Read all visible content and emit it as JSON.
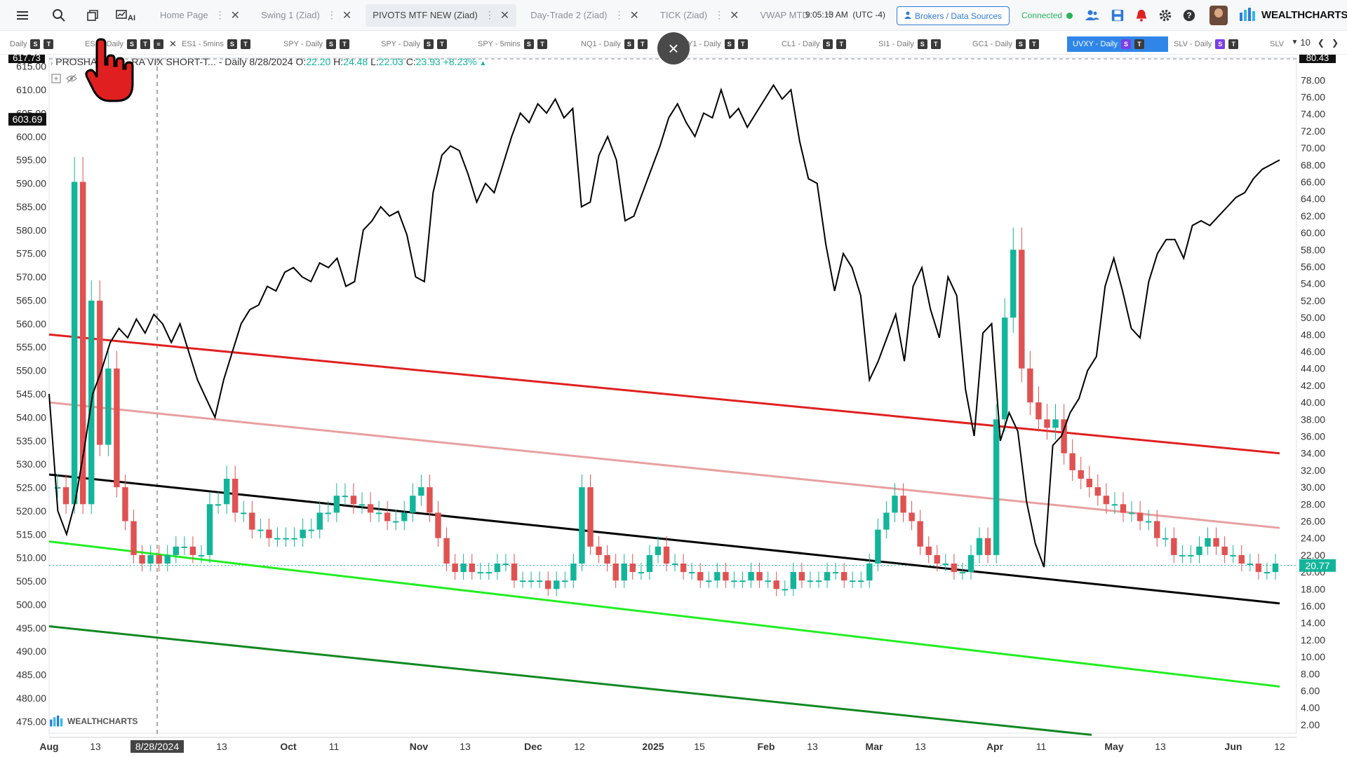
{
  "topbar": {
    "menu_icon": "hamburger-icon",
    "search_icon": "search-icon",
    "windows_icon": "windows-icon",
    "ai_label": "AI",
    "tabs": [
      {
        "label": "Home Page",
        "active": false
      },
      {
        "label": "Swing 1 (Ziad)",
        "active": false
      },
      {
        "label": "PIVOTS MTF NEW (Ziad)",
        "active": true
      },
      {
        "label": "Day-Trade 2 (Ziad)",
        "active": false
      },
      {
        "label": "TICK (Ziad)",
        "active": false
      },
      {
        "label": "VWAP MTD",
        "active": false
      }
    ],
    "add_tab": "+",
    "clock": "9:05:13 AM",
    "timezone": "(UTC -4)",
    "brokers_label": "Brokers / Data Sources",
    "status_label": "Connected",
    "status_color": "#27b35a",
    "brand": "WEALTHCHARTS"
  },
  "chart_tabs": [
    {
      "label": "Daily",
      "s": "S",
      "t": "T",
      "active": false
    },
    {
      "label": "ES1 - Daily",
      "s": "S",
      "t": "T",
      "active": false,
      "closable": true
    },
    {
      "label": "ES1 - 5mins",
      "s": "S",
      "t": "T",
      "active": false
    },
    {
      "label": "SPY - Daily",
      "s": "S",
      "t": "T",
      "active": false
    },
    {
      "label": "SPY - Daily",
      "s": "S",
      "t": "T",
      "active": false
    },
    {
      "label": "SPY - 5mins",
      "s": "S",
      "t": "T",
      "active": false
    },
    {
      "label": "NQ1 - Daily",
      "s": "S",
      "t": "T",
      "active": false
    },
    {
      "label": "Y1 - Daily",
      "s": "S",
      "t": "T",
      "active": false
    },
    {
      "label": "CL1 - Daily",
      "s": "S",
      "t": "T",
      "active": false
    },
    {
      "label": "SI1 - Daily",
      "s": "S",
      "t": "T",
      "active": false
    },
    {
      "label": "GC1 - Daily",
      "s": "S",
      "t": "T",
      "active": false
    },
    {
      "label": "UVXY - Daily",
      "s": "S",
      "t": "T",
      "active": true
    },
    {
      "label": "SLV - Daily",
      "s": "S",
      "t": "T",
      "active": false
    },
    {
      "label": "SLV",
      "s": "",
      "t": "",
      "active": false
    }
  ],
  "tabs_more": "10",
  "legend": {
    "name": "PROSHA",
    "name_tail": "RA VIX SHORT-T...",
    "interval": "- Daily",
    "date": "8/28/2024",
    "o_label": "O:",
    "o": "22.20",
    "h_label": "H:",
    "h": "24.48",
    "l_label": "L:",
    "l": "22.03",
    "c_label": "C:",
    "c": "23.93",
    "change": "+8.23%"
  },
  "chart_data": {
    "type": "candlestick+line",
    "symbol": "UVXY - Daily",
    "left_axis": {
      "ticks": [
        "615.00",
        "610.00",
        "605.00",
        "600.00",
        "595.00",
        "590.00",
        "585.00",
        "580.00",
        "575.00",
        "570.00",
        "565.00",
        "560.00",
        "555.00",
        "550.00",
        "545.00",
        "540.00",
        "535.00",
        "530.00",
        "525.00",
        "520.00",
        "515.00",
        "510.00",
        "505.00",
        "500.00",
        "495.00",
        "490.00",
        "485.00",
        "480.00",
        "475.00"
      ],
      "ylim": [
        472.5,
        617.5
      ],
      "top_label": "617.73",
      "current_label": "603.69"
    },
    "right_axis": {
      "ticks": [
        "78.00",
        "76.00",
        "74.00",
        "72.00",
        "70.00",
        "68.00",
        "66.00",
        "64.00",
        "62.00",
        "60.00",
        "58.00",
        "56.00",
        "54.00",
        "52.00",
        "50.00",
        "48.00",
        "46.00",
        "44.00",
        "42.00",
        "40.00",
        "38.00",
        "36.00",
        "34.00",
        "32.00",
        "30.00",
        "28.00",
        "26.00",
        "24.00",
        "22.00",
        "20.00",
        "18.00",
        "16.00",
        "14.00",
        "12.00",
        "10.00",
        "8.00",
        "6.00",
        "4.00",
        "2.00"
      ],
      "ylim": [
        1.0,
        81.0
      ],
      "top_label": "80.43",
      "current_label": "20.77"
    },
    "x_axis_labels": [
      "Aug",
      "13",
      "8/28/2024",
      "13",
      "Oct",
      "11",
      "Nov",
      "13",
      "Dec",
      "12",
      "2025",
      "15",
      "Feb",
      "13",
      "Mar",
      "13",
      "Apr",
      "11",
      "May",
      "13",
      "Jun",
      "12"
    ],
    "crosshair_date": "8/28/2024",
    "line_series": {
      "name": "",
      "axis": "left",
      "values": [
        545,
        520,
        515,
        522,
        533,
        545,
        550,
        556,
        559,
        557,
        561,
        558,
        562,
        560,
        556,
        560,
        554,
        548,
        544,
        540,
        548,
        554,
        560,
        563,
        564,
        568,
        567,
        571,
        572,
        570,
        569,
        573,
        572,
        574,
        568,
        569,
        580,
        582,
        585,
        583,
        584,
        579,
        570,
        569,
        588,
        596,
        598,
        597,
        592,
        586,
        590,
        588,
        594,
        600,
        605,
        603,
        607,
        605,
        608,
        604,
        606,
        585,
        586,
        596,
        600,
        595,
        582,
        583,
        588,
        593,
        598,
        604,
        607,
        603,
        600,
        605,
        604,
        610,
        604,
        606,
        602,
        605,
        608,
        611,
        608,
        610,
        599,
        591,
        590,
        577,
        567,
        575,
        572,
        566,
        548,
        552,
        557,
        562,
        552,
        568,
        572,
        563,
        557,
        570,
        566,
        546,
        536,
        558,
        560,
        535,
        541,
        537,
        522,
        513,
        508,
        534,
        536,
        541,
        544,
        550,
        553,
        568,
        574,
        567,
        559,
        557,
        569,
        575,
        578,
        578,
        574,
        581,
        582,
        581,
        583,
        585,
        587,
        588,
        591,
        593,
        594,
        595
      ]
    },
    "candles": {
      "axis": "right",
      "values": [
        30,
        28,
        66,
        28,
        52,
        35,
        44,
        30,
        26,
        22,
        21,
        22,
        21,
        22,
        23,
        23,
        22,
        22,
        28,
        28,
        31,
        27,
        27,
        25,
        25,
        24,
        24,
        24,
        24,
        25,
        25,
        27,
        27,
        29,
        29,
        28,
        28,
        27,
        27,
        26,
        26,
        27,
        29,
        30,
        27,
        24,
        21,
        20,
        21,
        20,
        20,
        20,
        21,
        21,
        19,
        19,
        19,
        19,
        18,
        19,
        19,
        21,
        30,
        23,
        22,
        21,
        19,
        21,
        20,
        20,
        22,
        23,
        21,
        21,
        20,
        20,
        19,
        19,
        20,
        19,
        19,
        19,
        20,
        19,
        19,
        18,
        18,
        20,
        19,
        19,
        19,
        20,
        20,
        19,
        19,
        19,
        21,
        25,
        27,
        29,
        27,
        26,
        23,
        22,
        21,
        21,
        20,
        20,
        22,
        24,
        22,
        38,
        50,
        58,
        44,
        40,
        38,
        37,
        38,
        34,
        32,
        31,
        30,
        29,
        28,
        28,
        27,
        27,
        26,
        26,
        24,
        24,
        22,
        22,
        22,
        23,
        24,
        23,
        22,
        22,
        21,
        21,
        20,
        20,
        21
      ]
    },
    "trend_lines": [
      {
        "color": "#e02020",
        "axis": "right",
        "from": [
          "Aug",
          48.0
        ],
        "to": [
          "Jun 12",
          34.0
        ]
      },
      {
        "color": "#e8a0a0",
        "axis": "right",
        "from": [
          "Aug",
          40.0
        ],
        "to": [
          "Jun 12",
          25.2
        ]
      },
      {
        "color": "#000000",
        "axis": "right",
        "from": [
          "Aug",
          31.5
        ],
        "to": [
          "Jun 12",
          16.3
        ]
      },
      {
        "color": "#22ee22",
        "axis": "right",
        "from": [
          "Aug",
          23.6
        ],
        "to": [
          "Jun 12",
          6.5
        ]
      },
      {
        "color": "#118822",
        "axis": "right",
        "from": [
          "Aug",
          13.6
        ],
        "to": [
          "Apr 30",
          0.8
        ]
      }
    ],
    "colors": {
      "up": "#13b59a",
      "down": "#e05252",
      "line": "#000000",
      "current_price_line": "#13b59a"
    }
  },
  "overlay": {
    "close_icon": "close-icon",
    "close_glyph": "×",
    "cursor_icon": "hand-pointer-icon"
  }
}
